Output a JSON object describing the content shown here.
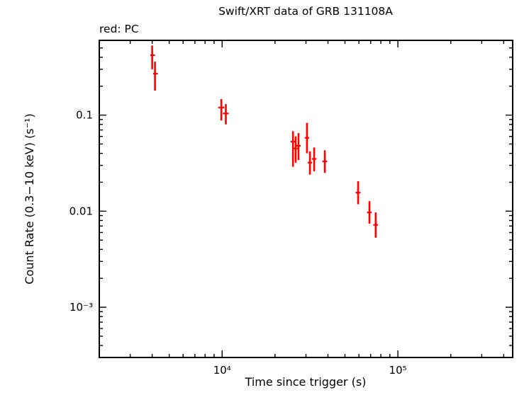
{
  "chart_data": {
    "type": "scatter",
    "title": "Swift/XRT data of GRB 131108A",
    "mode_label": "red: PC",
    "xlabel": "Time since trigger (s)",
    "ylabel": "Count Rate (0.3−10 keV) (s⁻¹)",
    "xscale": "log",
    "yscale": "log",
    "xlim": [
      2000,
      450000
    ],
    "ylim": [
      0.0003,
      0.6
    ],
    "grid": false,
    "legend_position": "none",
    "series_name": "PC mode",
    "series_color": "#ff0000",
    "frame_color": "#000000",
    "xticks": [
      {
        "v": 10000,
        "label": "10⁴"
      },
      {
        "v": 100000,
        "label": "10⁵"
      }
    ],
    "yticks": [
      {
        "v": 0.001,
        "label": "10⁻³"
      },
      {
        "v": 0.01,
        "label": "0.01"
      },
      {
        "v": 0.1,
        "label": "0.1"
      }
    ],
    "points": [
      {
        "t": 4000,
        "t_min": 3900,
        "t_max": 4150,
        "rate": 0.42,
        "rate_min": 0.3,
        "rate_max": 0.53
      },
      {
        "t": 4150,
        "t_min": 4050,
        "t_max": 4300,
        "rate": 0.27,
        "rate_min": 0.18,
        "rate_max": 0.36
      },
      {
        "t": 9900,
        "t_min": 9500,
        "t_max": 10300,
        "rate": 0.12,
        "rate_min": 0.088,
        "rate_max": 0.147
      },
      {
        "t": 10500,
        "t_min": 10100,
        "t_max": 10900,
        "rate": 0.104,
        "rate_min": 0.08,
        "rate_max": 0.13
      },
      {
        "t": 25300,
        "t_min": 24500,
        "t_max": 26100,
        "rate": 0.053,
        "rate_min": 0.029,
        "rate_max": 0.068
      },
      {
        "t": 26200,
        "t_min": 25400,
        "t_max": 27000,
        "rate": 0.045,
        "rate_min": 0.032,
        "rate_max": 0.06
      },
      {
        "t": 27200,
        "t_min": 26400,
        "t_max": 28000,
        "rate": 0.048,
        "rate_min": 0.034,
        "rate_max": 0.065
      },
      {
        "t": 30400,
        "t_min": 29500,
        "t_max": 31300,
        "rate": 0.058,
        "rate_min": 0.04,
        "rate_max": 0.083
      },
      {
        "t": 31600,
        "t_min": 30700,
        "t_max": 32500,
        "rate": 0.032,
        "rate_min": 0.024,
        "rate_max": 0.042
      },
      {
        "t": 33400,
        "t_min": 32400,
        "t_max": 34400,
        "rate": 0.035,
        "rate_min": 0.026,
        "rate_max": 0.046
      },
      {
        "t": 38400,
        "t_min": 37200,
        "t_max": 39600,
        "rate": 0.033,
        "rate_min": 0.025,
        "rate_max": 0.043
      },
      {
        "t": 59400,
        "t_min": 57500,
        "t_max": 61300,
        "rate": 0.0156,
        "rate_min": 0.0118,
        "rate_max": 0.0205
      },
      {
        "t": 68900,
        "t_min": 66800,
        "t_max": 71000,
        "rate": 0.0097,
        "rate_min": 0.0074,
        "rate_max": 0.0127
      },
      {
        "t": 74800,
        "t_min": 72500,
        "t_max": 77100,
        "rate": 0.0072,
        "rate_min": 0.0053,
        "rate_max": 0.0097
      }
    ]
  }
}
